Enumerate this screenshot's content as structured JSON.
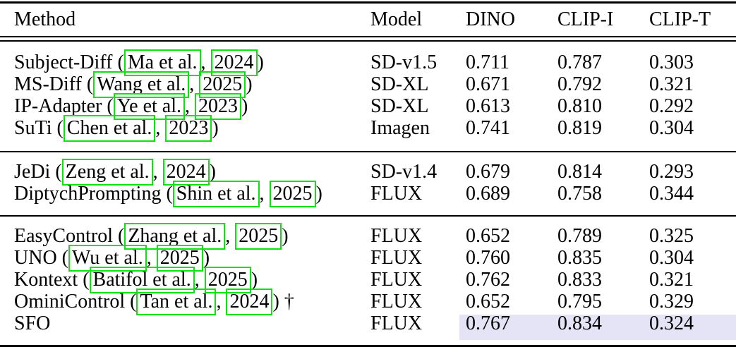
{
  "colors": {
    "background": "#ffffff",
    "text": "#000000",
    "rule": "#000000",
    "link_box": "#0ce20c",
    "highlight": "#e4e4f6"
  },
  "table": {
    "headers": [
      "Method",
      "Model",
      "DINO",
      "CLIP-I",
      "CLIP-T"
    ],
    "groups": [
      {
        "rows": [
          {
            "method": [
              {
                "text": "Subject-Diff ("
              },
              {
                "cite": "Ma et al."
              },
              {
                "text": ", "
              },
              {
                "cite": "2024"
              },
              {
                "text": ")"
              }
            ],
            "model": "SD-v1.5",
            "dino": "0.711",
            "clip_i": "0.787",
            "clip_t": "0.303",
            "highlight": false
          },
          {
            "method": [
              {
                "text": "MS-Diff ("
              },
              {
                "cite": "Wang et al."
              },
              {
                "text": ", "
              },
              {
                "cite": "2025"
              },
              {
                "text": ")"
              }
            ],
            "model": "SD-XL",
            "dino": "0.671",
            "clip_i": "0.792",
            "clip_t": "0.321",
            "highlight": false
          },
          {
            "method": [
              {
                "text": "IP-Adapter ("
              },
              {
                "cite": "Ye et al."
              },
              {
                "text": ", "
              },
              {
                "cite": "2023"
              },
              {
                "text": ")"
              }
            ],
            "model": "SD-XL",
            "dino": "0.613",
            "clip_i": "0.810",
            "clip_t": "0.292",
            "highlight": false
          },
          {
            "method": [
              {
                "text": "SuTi ("
              },
              {
                "cite": "Chen et al."
              },
              {
                "text": ", "
              },
              {
                "cite": "2023"
              },
              {
                "text": ")"
              }
            ],
            "model": "Imagen",
            "dino": "0.741",
            "clip_i": "0.819",
            "clip_t": "0.304",
            "highlight": false
          }
        ]
      },
      {
        "rows": [
          {
            "method": [
              {
                "text": "JeDi ("
              },
              {
                "cite": "Zeng et al."
              },
              {
                "text": ", "
              },
              {
                "cite": "2024"
              },
              {
                "text": ")"
              }
            ],
            "model": "SD-v1.4",
            "dino": "0.679",
            "clip_i": "0.814",
            "clip_t": "0.293",
            "highlight": false
          },
          {
            "method": [
              {
                "text": "DiptychPrompting ("
              },
              {
                "cite": "Shin et al."
              },
              {
                "text": ", "
              },
              {
                "cite": "2025"
              },
              {
                "text": ")"
              }
            ],
            "model": "FLUX",
            "dino": "0.689",
            "clip_i": "0.758",
            "clip_t": "0.344",
            "highlight": false
          }
        ]
      },
      {
        "rows": [
          {
            "method": [
              {
                "text": "EasyControl ("
              },
              {
                "cite": "Zhang et al."
              },
              {
                "text": ", "
              },
              {
                "cite": "2025"
              },
              {
                "text": ")"
              }
            ],
            "model": "FLUX",
            "dino": "0.652",
            "clip_i": "0.789",
            "clip_t": "0.325",
            "highlight": false
          },
          {
            "method": [
              {
                "text": "UNO ("
              },
              {
                "cite": "Wu et al."
              },
              {
                "text": ", "
              },
              {
                "cite": "2025"
              },
              {
                "text": ")"
              }
            ],
            "model": "FLUX",
            "dino": "0.760",
            "clip_i": "0.835",
            "clip_t": "0.304",
            "highlight": false
          },
          {
            "method": [
              {
                "text": "Kontext ("
              },
              {
                "cite": "Batifol et al."
              },
              {
                "text": ", "
              },
              {
                "cite": "2025"
              },
              {
                "text": ")"
              }
            ],
            "model": "FLUX",
            "dino": "0.762",
            "clip_i": "0.833",
            "clip_t": "0.321",
            "highlight": false
          },
          {
            "method": [
              {
                "text": "OminiControl ("
              },
              {
                "cite": "Tan et al."
              },
              {
                "text": ", "
              },
              {
                "cite": "2024"
              },
              {
                "text": ") †"
              }
            ],
            "model": "FLUX",
            "dino": "0.652",
            "clip_i": "0.795",
            "clip_t": "0.329",
            "highlight": false
          },
          {
            "method": [
              {
                "text": "SFO"
              }
            ],
            "model": "FLUX",
            "dino": "0.767",
            "clip_i": "0.834",
            "clip_t": "0.324",
            "highlight": true
          }
        ]
      }
    ]
  }
}
